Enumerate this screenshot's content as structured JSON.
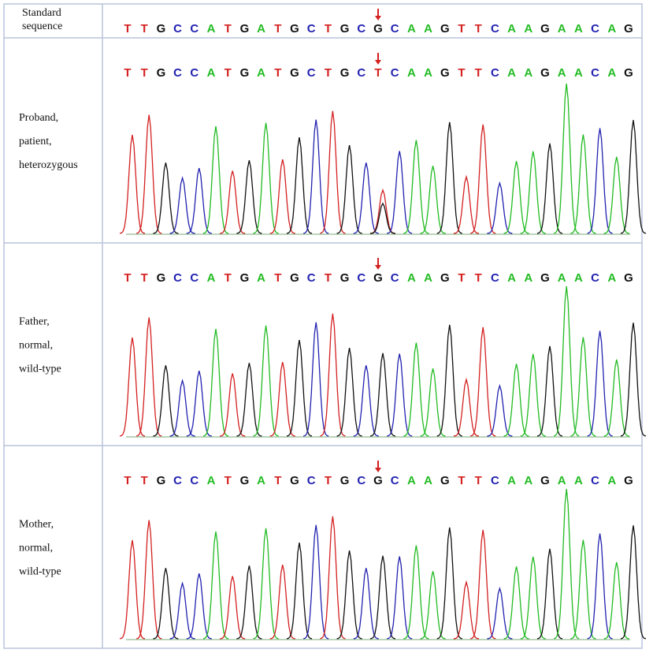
{
  "rows": [
    {
      "label": [
        "Standard",
        "sequence"
      ],
      "sequence": [
        "T",
        "T",
        "G",
        "C",
        "C",
        "A",
        "T",
        "G",
        "A",
        "T",
        "G",
        "C",
        "T",
        "G",
        "C",
        "G",
        "C",
        "A",
        "A",
        "G",
        "T",
        "T",
        "C",
        "A",
        "A",
        "G",
        "A",
        "A",
        "C",
        "A",
        "G"
      ]
    },
    {
      "label": [
        "Proband,",
        "patient,",
        "heterozygous"
      ],
      "sequence": [
        "T",
        "T",
        "G",
        "C",
        "C",
        "A",
        "T",
        "G",
        "A",
        "T",
        "G",
        "C",
        "T",
        "G",
        "C",
        "T",
        "C",
        "A",
        "A",
        "G",
        "T",
        "T",
        "C",
        "A",
        "A",
        "G",
        "A",
        "A",
        "C",
        "A",
        "G"
      ]
    },
    {
      "label": [
        "Father,",
        "normal,",
        "wild-type"
      ],
      "sequence": [
        "T",
        "T",
        "G",
        "C",
        "C",
        "A",
        "T",
        "G",
        "A",
        "T",
        "G",
        "C",
        "T",
        "G",
        "C",
        "G",
        "C",
        "A",
        "A",
        "G",
        "T",
        "T",
        "C",
        "A",
        "A",
        "G",
        "A",
        "A",
        "C",
        "A",
        "G"
      ]
    },
    {
      "label": [
        "Mother,",
        "normal,",
        "wild-type"
      ],
      "sequence": [
        "T",
        "T",
        "G",
        "C",
        "C",
        "A",
        "T",
        "G",
        "A",
        "T",
        "G",
        "C",
        "T",
        "G",
        "C",
        "G",
        "C",
        "A",
        "A",
        "G",
        "T",
        "T",
        "C",
        "A",
        "A",
        "G",
        "A",
        "A",
        "C",
        "A",
        "G"
      ]
    }
  ]
}
